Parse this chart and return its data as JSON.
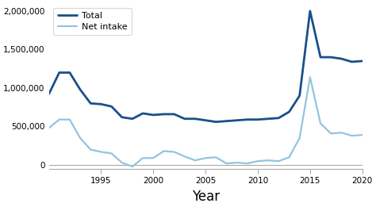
{
  "years": [
    1990,
    1991,
    1992,
    1993,
    1994,
    1995,
    1996,
    1997,
    1998,
    1999,
    2000,
    2001,
    2002,
    2003,
    2004,
    2005,
    2006,
    2007,
    2008,
    2009,
    2010,
    2011,
    2012,
    2013,
    2014,
    2015,
    2016,
    2017,
    2018,
    2019,
    2020
  ],
  "total": [
    920000,
    1200000,
    1200000,
    980000,
    800000,
    790000,
    760000,
    620000,
    600000,
    670000,
    650000,
    660000,
    660000,
    600000,
    600000,
    580000,
    560000,
    570000,
    580000,
    590000,
    590000,
    600000,
    610000,
    690000,
    900000,
    2000000,
    1400000,
    1400000,
    1380000,
    1340000,
    1350000
  ],
  "net_intake": [
    480000,
    590000,
    590000,
    350000,
    200000,
    170000,
    150000,
    30000,
    -20000,
    90000,
    90000,
    180000,
    170000,
    110000,
    60000,
    90000,
    100000,
    20000,
    30000,
    20000,
    50000,
    60000,
    50000,
    100000,
    350000,
    1140000,
    540000,
    410000,
    420000,
    380000,
    390000
  ],
  "total_color": "#1a4f8a",
  "net_intake_color": "#93c4de",
  "total_linewidth": 2.0,
  "net_intake_linewidth": 1.6,
  "xlabel": "Year",
  "ylim": [
    -50000,
    2100000
  ],
  "xlim": [
    1990,
    2020
  ],
  "yticks": [
    0,
    500000,
    1000000,
    1500000,
    2000000
  ],
  "ytick_labels": [
    "0",
    "500,000",
    "1,000,000",
    "1,500,000",
    "2,000,000"
  ],
  "xticks": [
    1995,
    2000,
    2005,
    2010,
    2015,
    2020
  ],
  "legend_labels": [
    "Total",
    "Net intake"
  ],
  "background_color": "#ffffff",
  "spine_color": "#aaaaaa",
  "xlabel_fontsize": 12,
  "tick_fontsize": 7.5
}
